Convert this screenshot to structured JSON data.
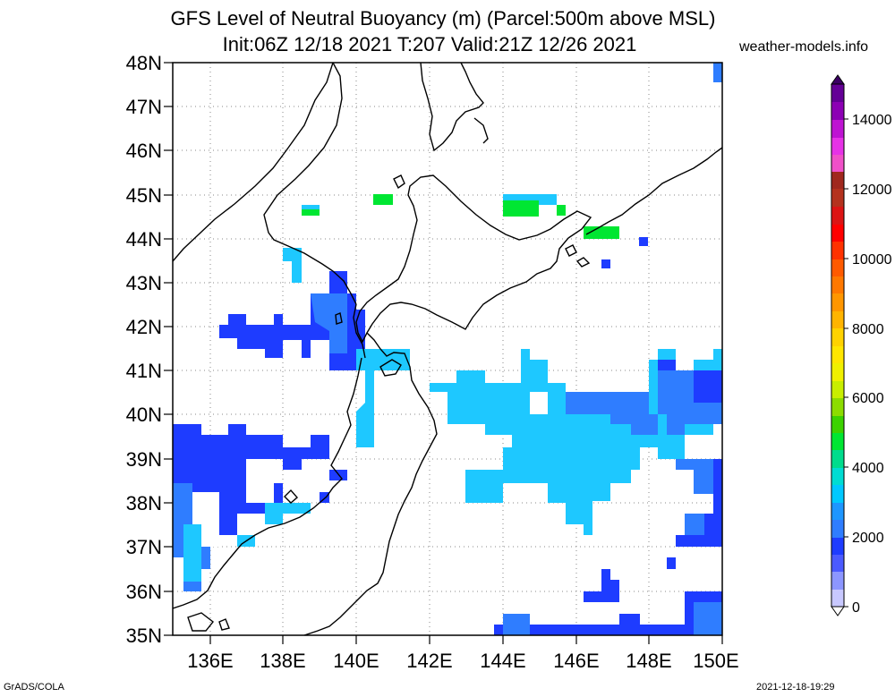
{
  "title_line1": "GFS Level of Neutral Buoyancy (m) (Parcel:500m above MSL)",
  "title_line2": "Init:06Z 12/18 2021 T:207 Valid:21Z 12/26 2021",
  "site": "weather-models.info",
  "footer_left": "GrADS/COLA",
  "footer_right": "2021-12-18-19:29",
  "lat_labels": [
    "48N",
    "47N",
    "46N",
    "45N",
    "44N",
    "43N",
    "42N",
    "41N",
    "40N",
    "39N",
    "38N",
    "37N",
    "36N",
    "35N"
  ],
  "lon_labels": [
    "136E",
    "138E",
    "140E",
    "142E",
    "144E",
    "146E",
    "148E",
    "150E"
  ],
  "colorbar_labels": [
    "14000",
    "12000",
    "10000",
    "8000",
    "6000",
    "4000",
    "2000",
    "0"
  ],
  "colors": {
    "deep_blue": "#1e3cff",
    "mid_blue": "#2f7dff",
    "light_blue": "#1ec8ff",
    "cyan": "#00dcf0",
    "green": "#00e632",
    "land_line": "#000000"
  }
}
